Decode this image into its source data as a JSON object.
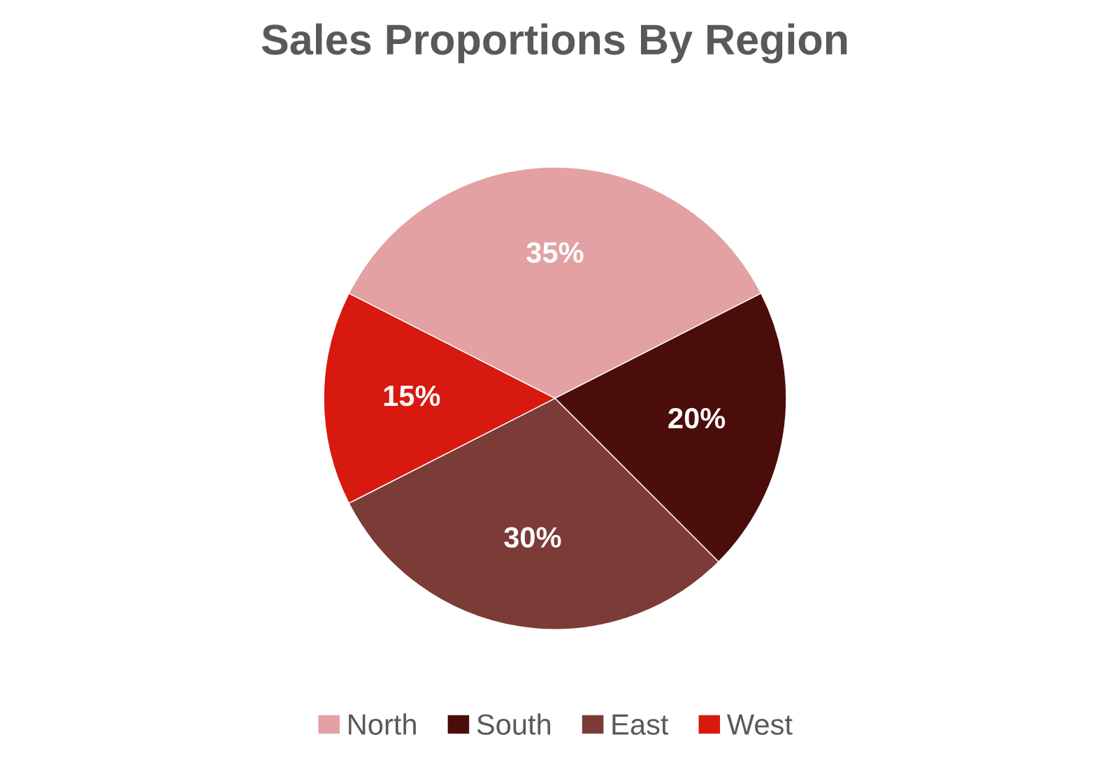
{
  "chart_data": {
    "type": "pie",
    "title": "Sales Proportions By Region",
    "categories": [
      "North",
      "South",
      "East",
      "West"
    ],
    "values": [
      35,
      20,
      30,
      15
    ],
    "colors": [
      "#e3a1a3",
      "#4a0d0a",
      "#7b3b37",
      "#d8190f"
    ],
    "value_labels": [
      "35%",
      "20%",
      "30%",
      "15%"
    ],
    "legend": "bottom"
  }
}
